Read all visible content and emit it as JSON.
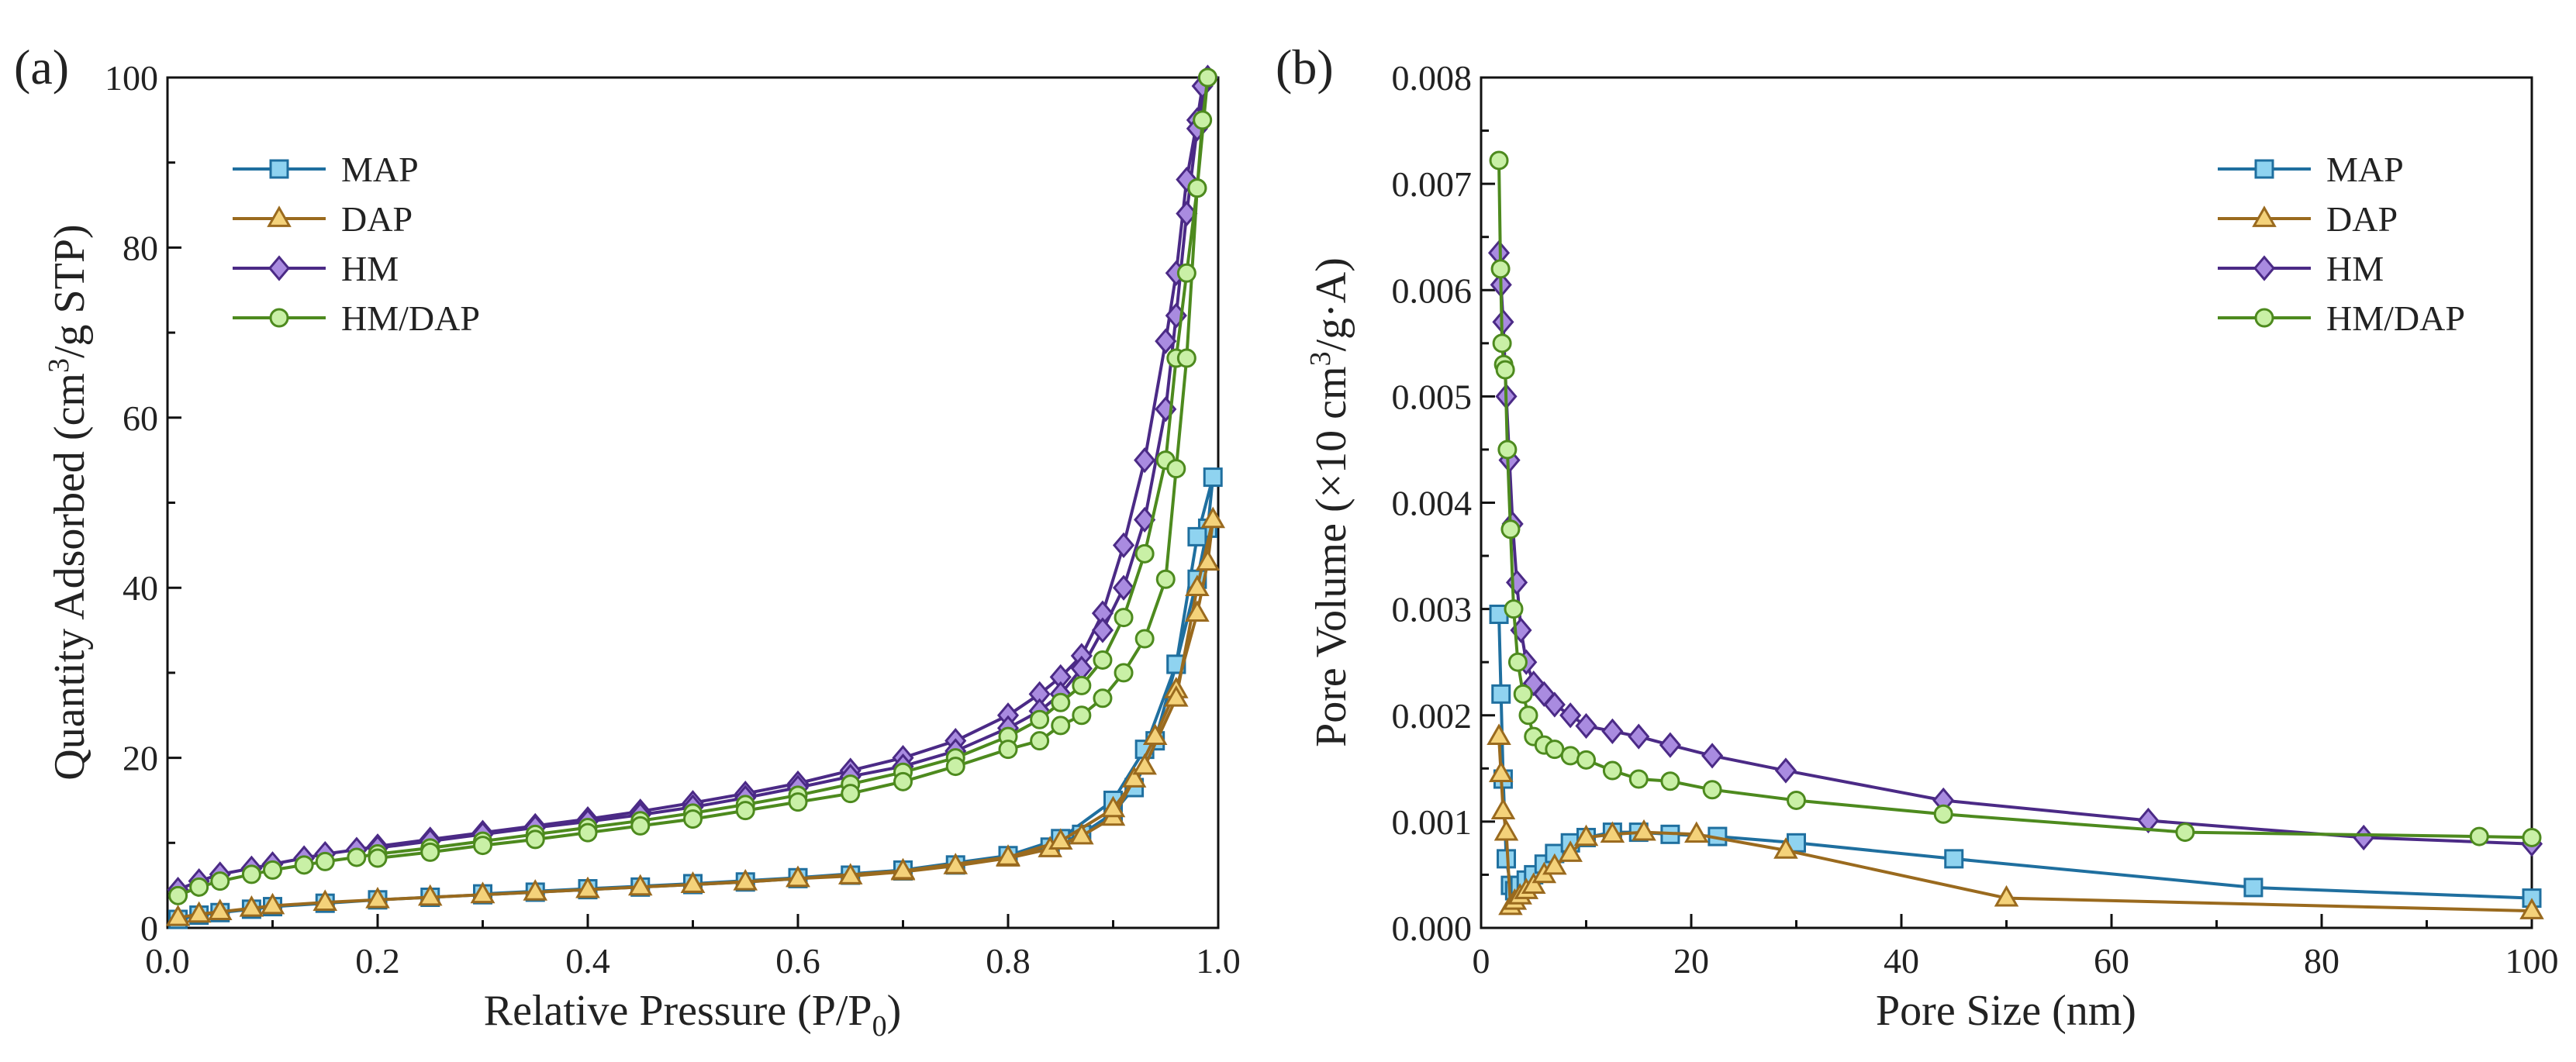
{
  "colors": {
    "MAP": "#1f6f9f",
    "MAP_fill": "#8fd3f0",
    "DAP": "#9a6a1e",
    "DAP_fill": "#f4d27a",
    "HM": "#4b2a86",
    "HM_fill": "#a98be0",
    "HMDAP": "#4d8a1e",
    "HMDAP_fill": "#c9f0a6"
  },
  "chart_data": [
    {
      "type": "line",
      "panel_label": "(a)",
      "xlabel_main": "Relative Pressure (P/P",
      "xlabel_sub": "0",
      "xlabel_tail": ")",
      "ylabel_main": "Quantity Adsorbed (cm",
      "ylabel_sup": "3",
      "ylabel_tail": "/g STP)",
      "xlim": [
        0,
        1.0
      ],
      "ylim": [
        0,
        100
      ],
      "xticks": [
        0.0,
        0.2,
        0.4,
        0.6,
        0.8,
        1.0
      ],
      "xtick_labels": [
        "0.0",
        "0.2",
        "0.4",
        "0.6",
        "0.8",
        "1.0"
      ],
      "yticks": [
        0,
        20,
        40,
        60,
        80,
        100
      ],
      "ytick_labels": [
        "0",
        "20",
        "40",
        "60",
        "80",
        "100"
      ],
      "legend_position": "top-left",
      "series": [
        {
          "name": "MAP",
          "marker": "square",
          "color_key": "MAP",
          "x": [
            0.01,
            0.03,
            0.05,
            0.08,
            0.1,
            0.15,
            0.2,
            0.25,
            0.3,
            0.35,
            0.4,
            0.45,
            0.5,
            0.55,
            0.6,
            0.65,
            0.7,
            0.75,
            0.8,
            0.84,
            0.87,
            0.9,
            0.92,
            0.94,
            0.96,
            0.98,
            0.99,
            0.995,
            0.98,
            0.96,
            0.93,
            0.9,
            0.85,
            0.8,
            0.7,
            0.6,
            0.5,
            0.4,
            0.3
          ],
          "y": [
            1.0,
            1.5,
            1.8,
            2.2,
            2.5,
            2.9,
            3.3,
            3.6,
            3.9,
            4.2,
            4.5,
            4.8,
            5.1,
            5.4,
            5.8,
            6.2,
            6.7,
            7.4,
            8.4,
            9.5,
            11.0,
            13.5,
            16.5,
            22.0,
            31.0,
            41.0,
            47.0,
            53.0,
            46.0,
            31.0,
            21.0,
            15.0,
            10.5,
            8.5,
            6.8,
            5.9,
            5.2,
            4.6,
            4.0
          ]
        },
        {
          "name": "DAP",
          "marker": "triangle",
          "color_key": "DAP",
          "x": [
            0.01,
            0.03,
            0.05,
            0.08,
            0.1,
            0.15,
            0.2,
            0.25,
            0.3,
            0.35,
            0.4,
            0.45,
            0.5,
            0.55,
            0.6,
            0.65,
            0.7,
            0.75,
            0.8,
            0.84,
            0.87,
            0.9,
            0.92,
            0.94,
            0.96,
            0.98,
            0.99,
            0.995,
            0.98,
            0.96,
            0.93,
            0.9,
            0.85,
            0.8,
            0.7,
            0.6,
            0.5,
            0.4,
            0.3
          ],
          "y": [
            1.2,
            1.6,
            1.9,
            2.3,
            2.6,
            3.0,
            3.3,
            3.6,
            3.9,
            4.2,
            4.5,
            4.8,
            5.1,
            5.4,
            5.8,
            6.1,
            6.6,
            7.3,
            8.2,
            9.3,
            10.8,
            13.0,
            17.5,
            22.5,
            28.0,
            37.0,
            43.0,
            48.0,
            40.0,
            27.0,
            19.0,
            14.0,
            10.2,
            8.3,
            6.7,
            5.8,
            5.1,
            4.5,
            3.9
          ]
        },
        {
          "name": "HM",
          "marker": "diamond",
          "color_key": "HM",
          "x": [
            0.01,
            0.03,
            0.05,
            0.08,
            0.1,
            0.13,
            0.15,
            0.18,
            0.2,
            0.25,
            0.3,
            0.35,
            0.4,
            0.45,
            0.5,
            0.55,
            0.6,
            0.65,
            0.7,
            0.75,
            0.8,
            0.83,
            0.85,
            0.87,
            0.89,
            0.91,
            0.93,
            0.95,
            0.96,
            0.97,
            0.98,
            0.985,
            0.99,
            0.98,
            0.97,
            0.96,
            0.95,
            0.93,
            0.91,
            0.89,
            0.87,
            0.85,
            0.83,
            0.8,
            0.75,
            0.7,
            0.65,
            0.6,
            0.55,
            0.5,
            0.45,
            0.4,
            0.35,
            0.3,
            0.25,
            0.2
          ],
          "y": [
            4.5,
            5.5,
            6.3,
            7.0,
            7.5,
            8.2,
            8.7,
            9.2,
            9.6,
            10.4,
            11.2,
            12.0,
            12.8,
            13.7,
            14.7,
            15.8,
            17.0,
            18.5,
            20.0,
            22.0,
            25.0,
            27.5,
            29.5,
            32.0,
            37.0,
            45.0,
            55.0,
            69.0,
            77.0,
            88.0,
            95.0,
            99.0,
            100.0,
            94.0,
            84.0,
            72.0,
            61.0,
            48.0,
            40.0,
            35.0,
            30.5,
            27.5,
            25.5,
            23.5,
            20.8,
            19.0,
            17.8,
            16.5,
            15.3,
            14.2,
            13.3,
            12.5,
            11.8,
            11.0,
            10.2,
            9.4
          ]
        },
        {
          "name": "HM/DAP",
          "marker": "circle",
          "color_key": "HMDAP",
          "x": [
            0.01,
            0.03,
            0.05,
            0.08,
            0.1,
            0.13,
            0.15,
            0.18,
            0.2,
            0.25,
            0.3,
            0.35,
            0.4,
            0.45,
            0.5,
            0.55,
            0.6,
            0.65,
            0.7,
            0.75,
            0.8,
            0.83,
            0.85,
            0.87,
            0.89,
            0.91,
            0.93,
            0.95,
            0.96,
            0.97,
            0.98,
            0.985,
            0.99,
            0.98,
            0.97,
            0.96,
            0.95,
            0.93,
            0.91,
            0.89,
            0.87,
            0.85,
            0.83,
            0.8,
            0.75,
            0.7,
            0.65,
            0.6,
            0.55,
            0.5,
            0.45,
            0.4,
            0.35,
            0.3,
            0.25,
            0.2
          ],
          "y": [
            3.8,
            4.8,
            5.5,
            6.3,
            6.8,
            7.4,
            7.8,
            8.3,
            8.7,
            9.4,
            10.2,
            11.0,
            11.8,
            12.6,
            13.5,
            14.5,
            15.6,
            16.9,
            18.3,
            20.0,
            22.5,
            24.5,
            26.5,
            28.5,
            31.5,
            36.5,
            44.0,
            55.0,
            67.0,
            77.0,
            87.0,
            95.0,
            100.0,
            87.0,
            67.0,
            54.0,
            41.0,
            34.0,
            30.0,
            27.0,
            25.0,
            23.8,
            22.0,
            21.0,
            19.0,
            17.2,
            15.8,
            14.8,
            13.8,
            12.8,
            12.0,
            11.2,
            10.4,
            9.7,
            8.9,
            8.2
          ]
        }
      ]
    },
    {
      "type": "line",
      "panel_label": "(b)",
      "xlabel_main": "Pore Size (nm)",
      "ylabel_main": "Pore Volume (×10 cm",
      "ylabel_sup": "3",
      "ylabel_tail": "/g·A)",
      "xlim": [
        0,
        100
      ],
      "ylim": [
        0,
        0.008
      ],
      "xticks": [
        0,
        20,
        40,
        60,
        80,
        100
      ],
      "xtick_labels": [
        "0",
        "20",
        "40",
        "60",
        "80",
        "100"
      ],
      "yticks": [
        0,
        0.001,
        0.002,
        0.003,
        0.004,
        0.005,
        0.006,
        0.007,
        0.008
      ],
      "ytick_labels": [
        "0.000",
        "0.001",
        "0.002",
        "0.003",
        "0.004",
        "0.005",
        "0.006",
        "0.007",
        "0.008"
      ],
      "legend_position": "top-right",
      "series": [
        {
          "name": "MAP",
          "marker": "square",
          "color_key": "MAP",
          "x": [
            1.7,
            1.9,
            2.1,
            2.4,
            2.8,
            3.2,
            3.7,
            4.3,
            5.0,
            6.0,
            7.0,
            8.5,
            10.0,
            12.5,
            15.0,
            18.0,
            22.5,
            30.0,
            45.0,
            73.5,
            100.0
          ],
          "y": [
            0.00295,
            0.0022,
            0.0014,
            0.00065,
            0.0004,
            0.00035,
            0.0004,
            0.00045,
            0.0005,
            0.0006,
            0.0007,
            0.0008,
            0.00085,
            0.0009,
            0.0009,
            0.00088,
            0.00086,
            0.0008,
            0.00065,
            0.00038,
            0.00028
          ]
        },
        {
          "name": "DAP",
          "marker": "triangle",
          "color_key": "DAP",
          "x": [
            1.7,
            1.9,
            2.1,
            2.4,
            2.8,
            3.2,
            3.7,
            4.3,
            5.0,
            6.0,
            7.0,
            8.5,
            10.0,
            12.5,
            15.5,
            20.5,
            29.0,
            50.0,
            100.0
          ],
          "y": [
            0.0018,
            0.00145,
            0.0011,
            0.0009,
            0.0002,
            0.00025,
            0.0003,
            0.00035,
            0.0004,
            0.0005,
            0.00058,
            0.0007,
            0.00085,
            0.00088,
            0.0009,
            0.00088,
            0.00073,
            0.00028,
            0.00016
          ]
        },
        {
          "name": "HM",
          "marker": "diamond",
          "color_key": "HM",
          "x": [
            1.7,
            1.9,
            2.1,
            2.4,
            2.7,
            3.0,
            3.4,
            3.8,
            4.3,
            5.0,
            6.0,
            7.0,
            8.5,
            10.0,
            12.5,
            15.0,
            18.0,
            22.0,
            29.0,
            44.0,
            63.5,
            84.0,
            100.0
          ],
          "y": [
            0.00635,
            0.00605,
            0.0057,
            0.005,
            0.0044,
            0.0038,
            0.00325,
            0.0028,
            0.0025,
            0.0023,
            0.0022,
            0.0021,
            0.002,
            0.0019,
            0.00185,
            0.0018,
            0.00172,
            0.00162,
            0.00148,
            0.0012,
            0.00101,
            0.00085,
            0.00079
          ]
        },
        {
          "name": "HM/DAP",
          "marker": "circle",
          "color_key": "HMDAP",
          "x": [
            1.7,
            1.85,
            2.0,
            2.15,
            2.3,
            2.5,
            2.8,
            3.1,
            3.5,
            4.0,
            4.5,
            5.0,
            6.0,
            7.0,
            8.5,
            10.0,
            12.5,
            15.0,
            18.0,
            22.0,
            30.0,
            44.0,
            67.0,
            95.0,
            100.0
          ],
          "y": [
            0.00722,
            0.0062,
            0.0055,
            0.0053,
            0.00525,
            0.0045,
            0.00375,
            0.003,
            0.0025,
            0.0022,
            0.002,
            0.0018,
            0.00172,
            0.00168,
            0.00162,
            0.00158,
            0.00148,
            0.0014,
            0.00138,
            0.0013,
            0.0012,
            0.00107,
            0.0009,
            0.00086,
            0.00085
          ]
        }
      ]
    }
  ]
}
